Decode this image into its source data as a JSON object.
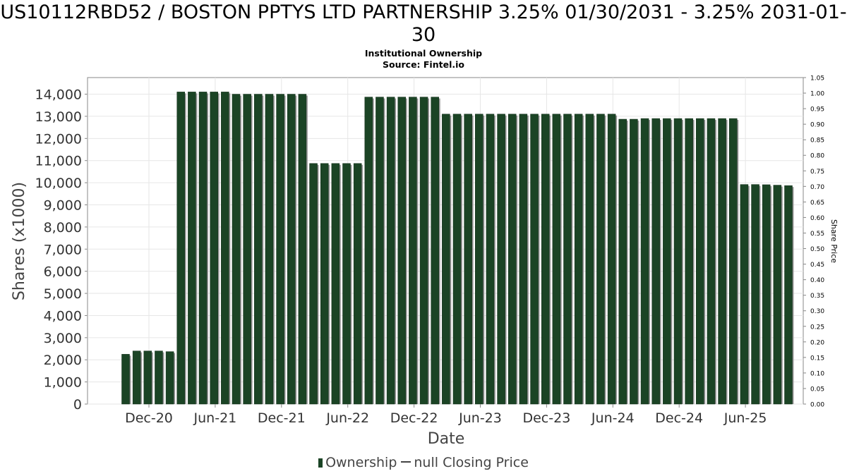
{
  "chart_data": {
    "type": "bar",
    "title": "US10112RBD52 / BOSTON PPTYS LTD PARTNERSHIP 3.25% 01/30/2031 - 3.25% 2031-01-30",
    "subtitle_lines": [
      "Institutional Ownership",
      "Source: Fintel.io"
    ],
    "xlabel": "Date",
    "ylabel": "Shares (x1000)",
    "y2label": "Share Price",
    "ylim": [
      0,
      14750
    ],
    "y2lim": [
      0,
      1.05
    ],
    "yticks": [
      "0",
      "1,000",
      "2,000",
      "3,000",
      "4,000",
      "5,000",
      "6,000",
      "7,000",
      "8,000",
      "9,000",
      "10,000",
      "11,000",
      "12,000",
      "13,000",
      "14,000"
    ],
    "y2ticks": [
      "0.00",
      "0.05",
      "0.10",
      "0.15",
      "0.20",
      "0.25",
      "0.30",
      "0.35",
      "0.40",
      "0.45",
      "0.50",
      "0.55",
      "0.60",
      "0.65",
      "0.70",
      "0.75",
      "0.80",
      "0.85",
      "0.90",
      "0.95",
      "1.00",
      "1.05"
    ],
    "xticks": [
      "Dec-20",
      "Jun-21",
      "Dec-21",
      "Jun-22",
      "Dec-22",
      "Jun-23",
      "Dec-23",
      "Jun-24",
      "Dec-24",
      "Jun-25"
    ],
    "grid": true,
    "legend_position": "bottom",
    "series": [
      {
        "name": "Ownership",
        "color": "#1b4425",
        "values": [
          2250,
          2400,
          2400,
          2400,
          2370,
          14100,
          14100,
          14100,
          14100,
          14100,
          14000,
          14000,
          14000,
          14000,
          14000,
          14000,
          14000,
          10870,
          10870,
          10870,
          10870,
          10870,
          13870,
          13870,
          13870,
          13870,
          13870,
          13870,
          13870,
          13100,
          13100,
          13100,
          13100,
          13100,
          13100,
          13100,
          13100,
          13100,
          13100,
          13100,
          13100,
          13100,
          13100,
          13100,
          13100,
          12870,
          12870,
          12900,
          12900,
          12900,
          12900,
          12900,
          12900,
          12900,
          12900,
          12900,
          9920,
          9920,
          9910,
          9890,
          9870
        ]
      }
    ],
    "legend": {
      "bar_label": "Ownership",
      "line_label": "null Closing Price"
    }
  }
}
